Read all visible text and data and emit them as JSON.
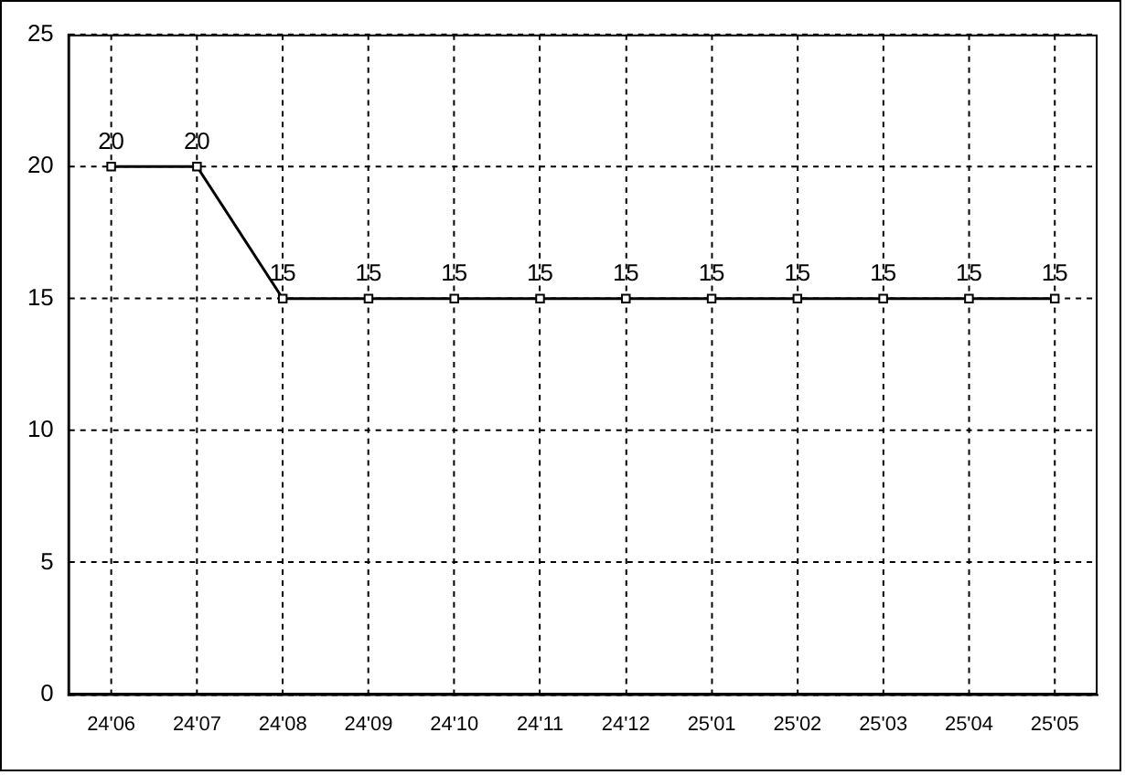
{
  "chart_data": {
    "type": "line",
    "categories": [
      "24'06",
      "24'07",
      "24'08",
      "24'09",
      "24'10",
      "24'11",
      "24'12",
      "25'01",
      "25'02",
      "25'03",
      "25'04",
      "25'05"
    ],
    "series": [
      {
        "color": "#000000",
        "values": [
          20,
          20,
          15,
          15,
          15,
          15,
          15,
          15,
          15,
          15,
          15,
          15
        ]
      }
    ],
    "ylim": [
      0,
      25
    ],
    "yticks": [
      0,
      5,
      10,
      15,
      20,
      25
    ],
    "grid": true,
    "legend": false,
    "marker": "square",
    "line_style": "solid",
    "data_labels": true
  }
}
